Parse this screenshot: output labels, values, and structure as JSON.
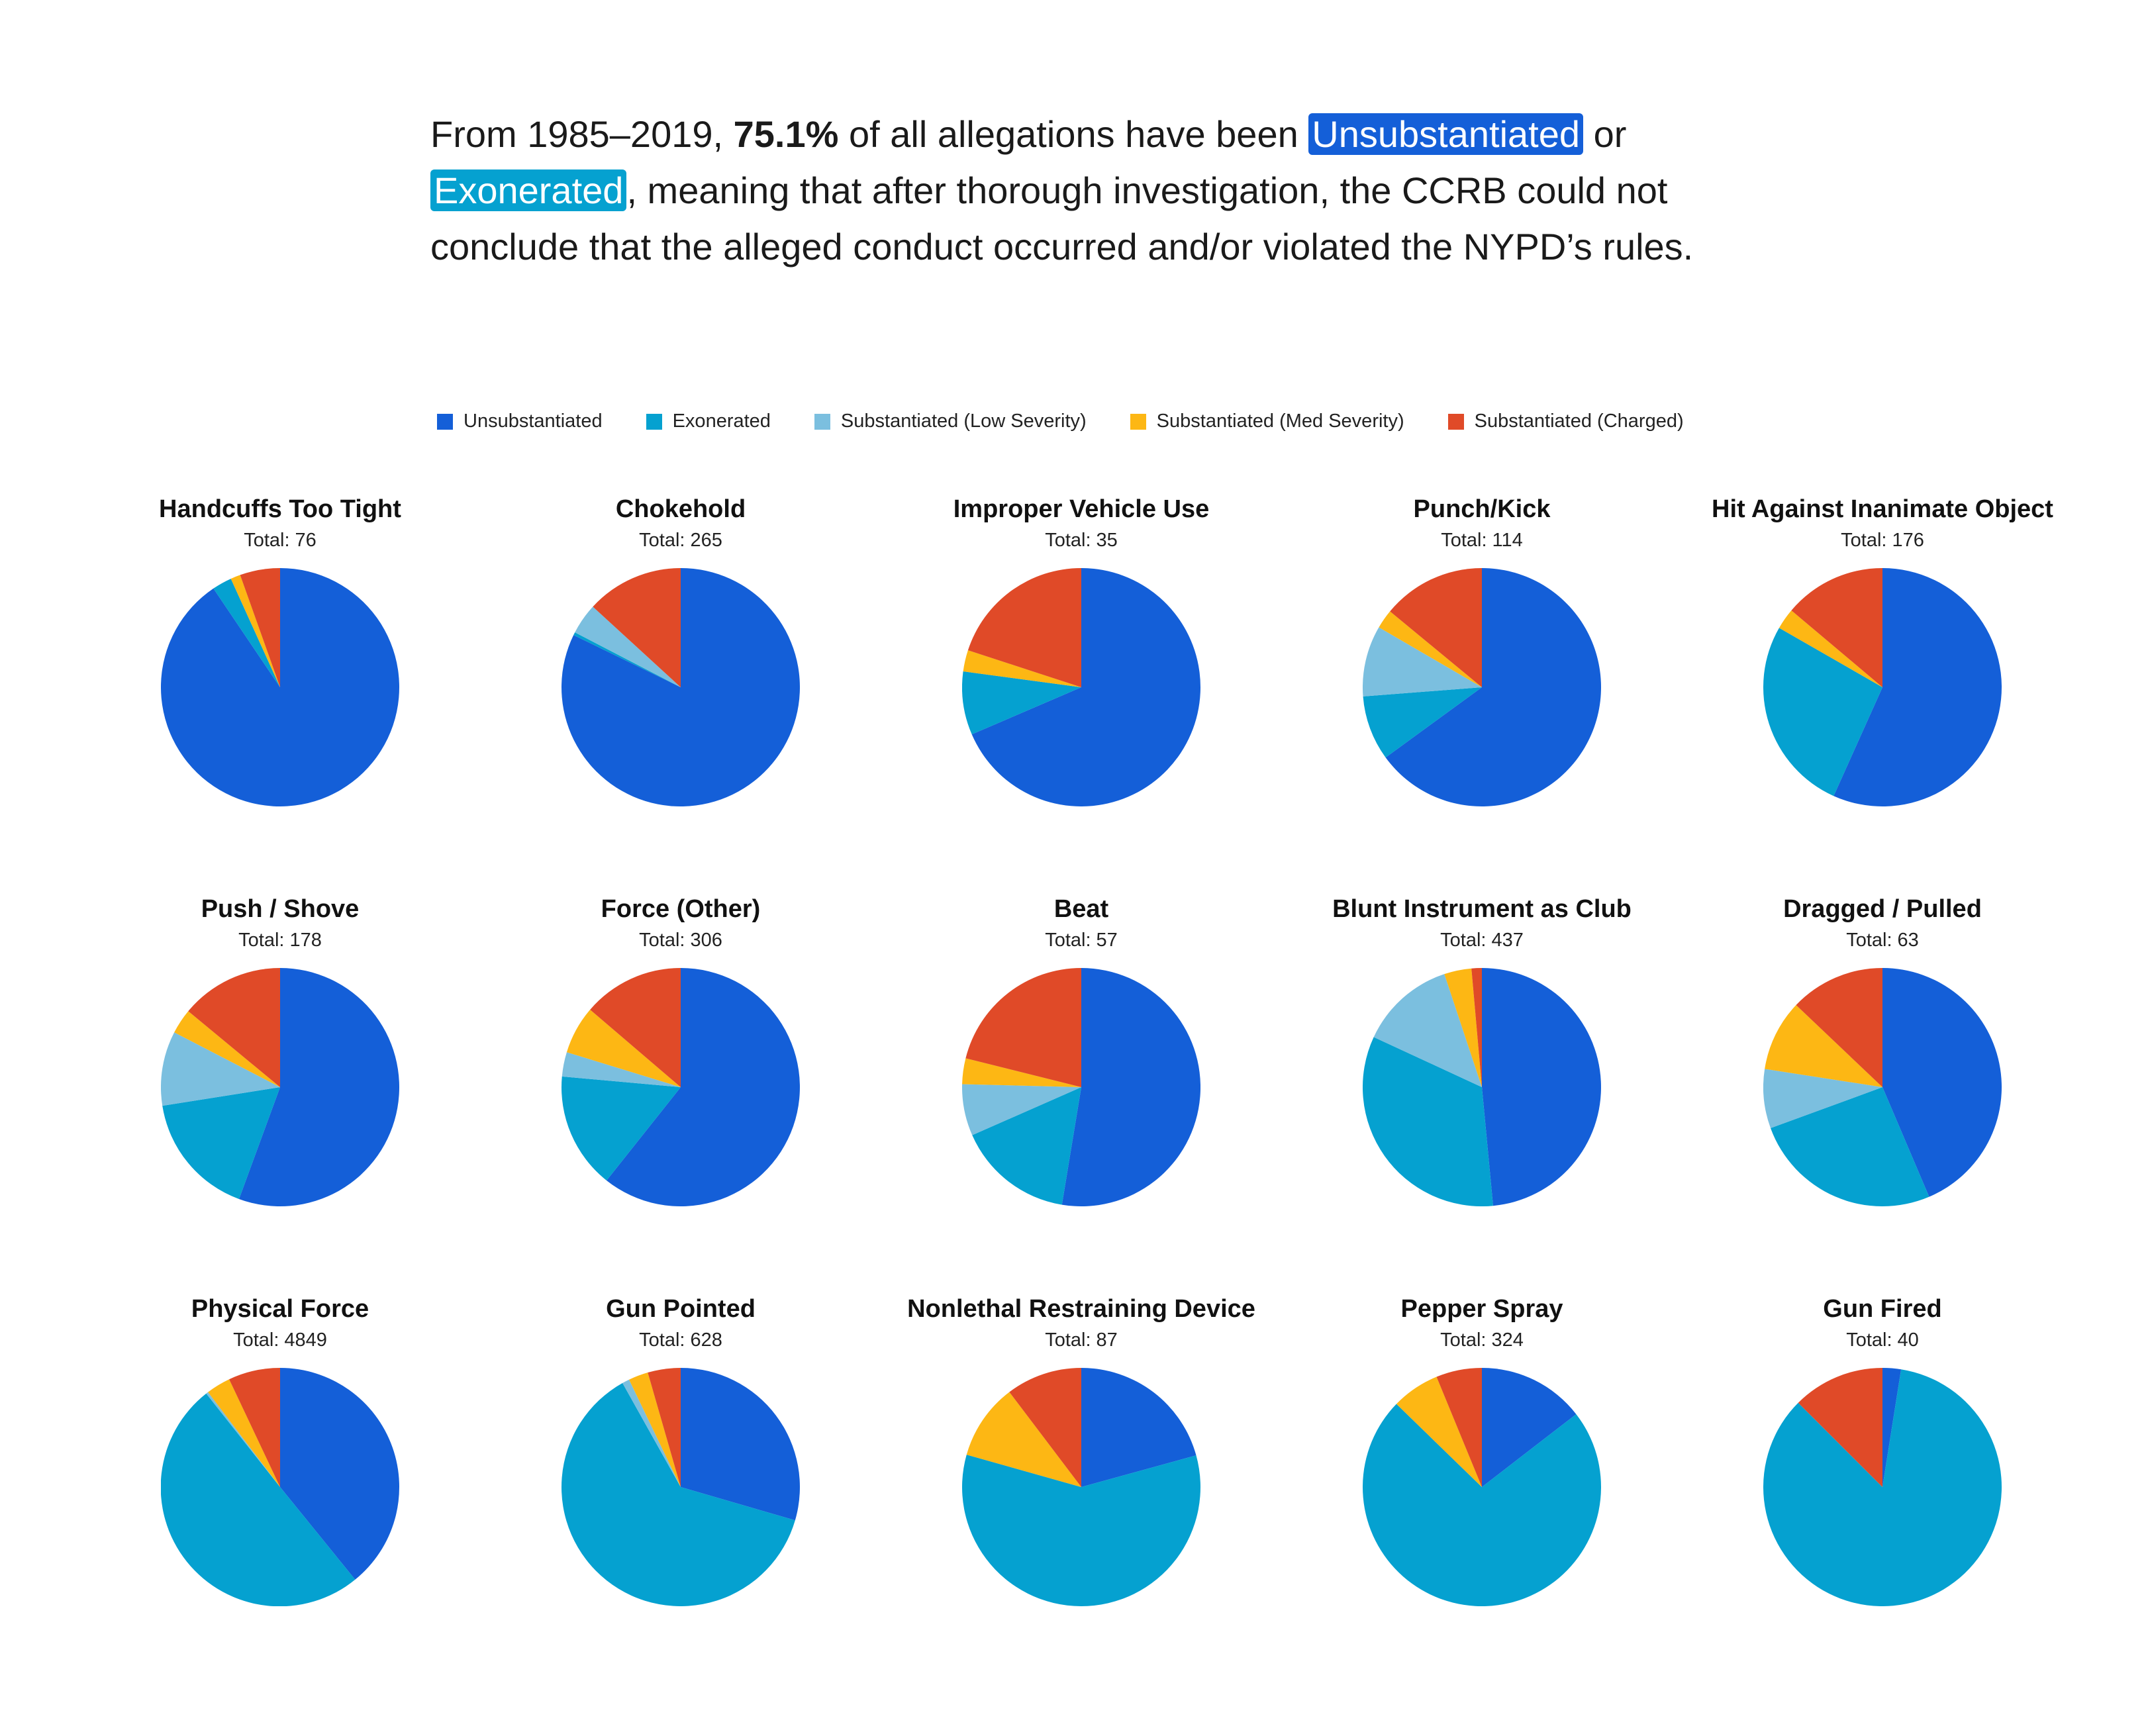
{
  "intro": {
    "from": "From  1985–2019,",
    "percent": "75.1%",
    "after_percent": "of all allegations have been",
    "unsub": "Unsubstantiated",
    "or": "or",
    "exon": "Exonerated",
    "rest": ", meaning that after thorough investigation, the CCRB could not conclude that the alleged conduct occurred and/or violated the NYPD’s rules."
  },
  "legend": [
    {
      "label": "Unsubstantiated",
      "color": "#145fd8"
    },
    {
      "label": "Exonerated",
      "color": "#05a1d0"
    },
    {
      "label": "Substantiated (Low Severity)",
      "color": "#7bbfdf"
    },
    {
      "label": "Substantiated (Med Severity)",
      "color": "#fdb714"
    },
    {
      "label": "Substantiated (Charged)",
      "color": "#e04a28"
    }
  ],
  "total_label": "Total:",
  "chart_data": [
    {
      "type": "pie",
      "title": "Handcuffs Too Tight",
      "total": 76,
      "categories": [
        "Unsubstantiated",
        "Exonerated",
        "Substantiated (Low Severity)",
        "Substantiated (Med Severity)",
        "Substantiated (Charged)"
      ],
      "values": [
        88.2,
        2.6,
        0,
        1.3,
        5.3
      ]
    },
    {
      "type": "pie",
      "title": "Chokehold",
      "total": 265,
      "categories": [
        "Unsubstantiated",
        "Exonerated",
        "Substantiated (Low Severity)",
        "Substantiated (Med Severity)",
        "Substantiated (Charged)"
      ],
      "values": [
        82.3,
        0.4,
        4.2,
        0,
        13.2
      ]
    },
    {
      "type": "pie",
      "title": "Improper Vehicle Use",
      "total": 35,
      "categories": [
        "Unsubstantiated",
        "Exonerated",
        "Substantiated (Low Severity)",
        "Substantiated (Med Severity)",
        "Substantiated (Charged)"
      ],
      "values": [
        68.6,
        8.6,
        0,
        2.9,
        20.0
      ]
    },
    {
      "type": "pie",
      "title": "Punch/Kick",
      "total": 114,
      "categories": [
        "Unsubstantiated",
        "Exonerated",
        "Substantiated (Low Severity)",
        "Substantiated (Med Severity)",
        "Substantiated (Charged)"
      ],
      "values": [
        64.9,
        8.8,
        9.6,
        2.6,
        14.0
      ]
    },
    {
      "type": "pie",
      "title": "Hit Against Inanimate Object",
      "total": 176,
      "categories": [
        "Unsubstantiated",
        "Exonerated",
        "Substantiated (Low Severity)",
        "Substantiated (Med Severity)",
        "Substantiated (Charged)"
      ],
      "values": [
        55.7,
        26.1,
        0,
        2.8,
        13.6
      ]
    },
    {
      "type": "pie",
      "title": "Push / Shove",
      "total": 178,
      "categories": [
        "Unsubstantiated",
        "Exonerated",
        "Substantiated (Low Severity)",
        "Substantiated (Med Severity)",
        "Substantiated (Charged)"
      ],
      "values": [
        55.6,
        16.9,
        10.1,
        3.4,
        14.0
      ]
    },
    {
      "type": "pie",
      "title": "Force (Other)",
      "total": 306,
      "categories": [
        "Unsubstantiated",
        "Exonerated",
        "Substantiated (Low Severity)",
        "Substantiated (Med Severity)",
        "Substantiated (Charged)"
      ],
      "values": [
        60.5,
        15.7,
        3.3,
        6.5,
        13.7
      ]
    },
    {
      "type": "pie",
      "title": "Beat",
      "total": 57,
      "categories": [
        "Unsubstantiated",
        "Exonerated",
        "Substantiated (Low Severity)",
        "Substantiated (Med Severity)",
        "Substantiated (Charged)"
      ],
      "values": [
        52.6,
        15.8,
        7.0,
        3.5,
        21.1
      ]
    },
    {
      "type": "pie",
      "title": "Blunt Instrument as Club",
      "total": 437,
      "categories": [
        "Unsubstantiated",
        "Exonerated",
        "Substantiated (Low Severity)",
        "Substantiated (Med Severity)",
        "Substantiated (Charged)"
      ],
      "values": [
        48.5,
        33.4,
        13.0,
        3.7,
        1.4
      ]
    },
    {
      "type": "pie",
      "title": "Dragged / Pulled",
      "total": 63,
      "categories": [
        "Unsubstantiated",
        "Exonerated",
        "Substantiated (Low Severity)",
        "Substantiated (Med Severity)",
        "Substantiated (Charged)"
      ],
      "values": [
        42.9,
        25.4,
        7.9,
        9.5,
        12.7
      ]
    },
    {
      "type": "pie",
      "title": "Physical Force",
      "total": 4849,
      "categories": [
        "Unsubstantiated",
        "Exonerated",
        "Substantiated (Low Severity)",
        "Substantiated (Med Severity)",
        "Substantiated (Charged)"
      ],
      "values": [
        39.0,
        50.0,
        0.3,
        3.3,
        7.0
      ]
    },
    {
      "type": "pie",
      "title": "Gun Pointed",
      "total": 628,
      "categories": [
        "Unsubstantiated",
        "Exonerated",
        "Substantiated (Low Severity)",
        "Substantiated (Med Severity)",
        "Substantiated (Charged)"
      ],
      "values": [
        29.8,
        63.0,
        1.0,
        2.7,
        4.5
      ]
    },
    {
      "type": "pie",
      "title": "Nonlethal Restraining Device",
      "total": 87,
      "categories": [
        "Unsubstantiated",
        "Exonerated",
        "Substantiated (Low Severity)",
        "Substantiated (Med Severity)",
        "Substantiated (Charged)"
      ],
      "values": [
        20.7,
        58.6,
        0,
        10.3,
        10.3
      ]
    },
    {
      "type": "pie",
      "title": "Pepper Spray",
      "total": 324,
      "categories": [
        "Unsubstantiated",
        "Exonerated",
        "Substantiated (Low Severity)",
        "Substantiated (Med Severity)",
        "Substantiated (Charged)"
      ],
      "values": [
        14.5,
        72.6,
        0,
        6.5,
        6.2
      ]
    },
    {
      "type": "pie",
      "title": "Gun Fired",
      "total": 40,
      "categories": [
        "Unsubstantiated",
        "Exonerated",
        "Substantiated (Low Severity)",
        "Substantiated (Med Severity)",
        "Substantiated (Charged)"
      ],
      "values": [
        2.5,
        85.0,
        0,
        0,
        12.5
      ]
    }
  ]
}
